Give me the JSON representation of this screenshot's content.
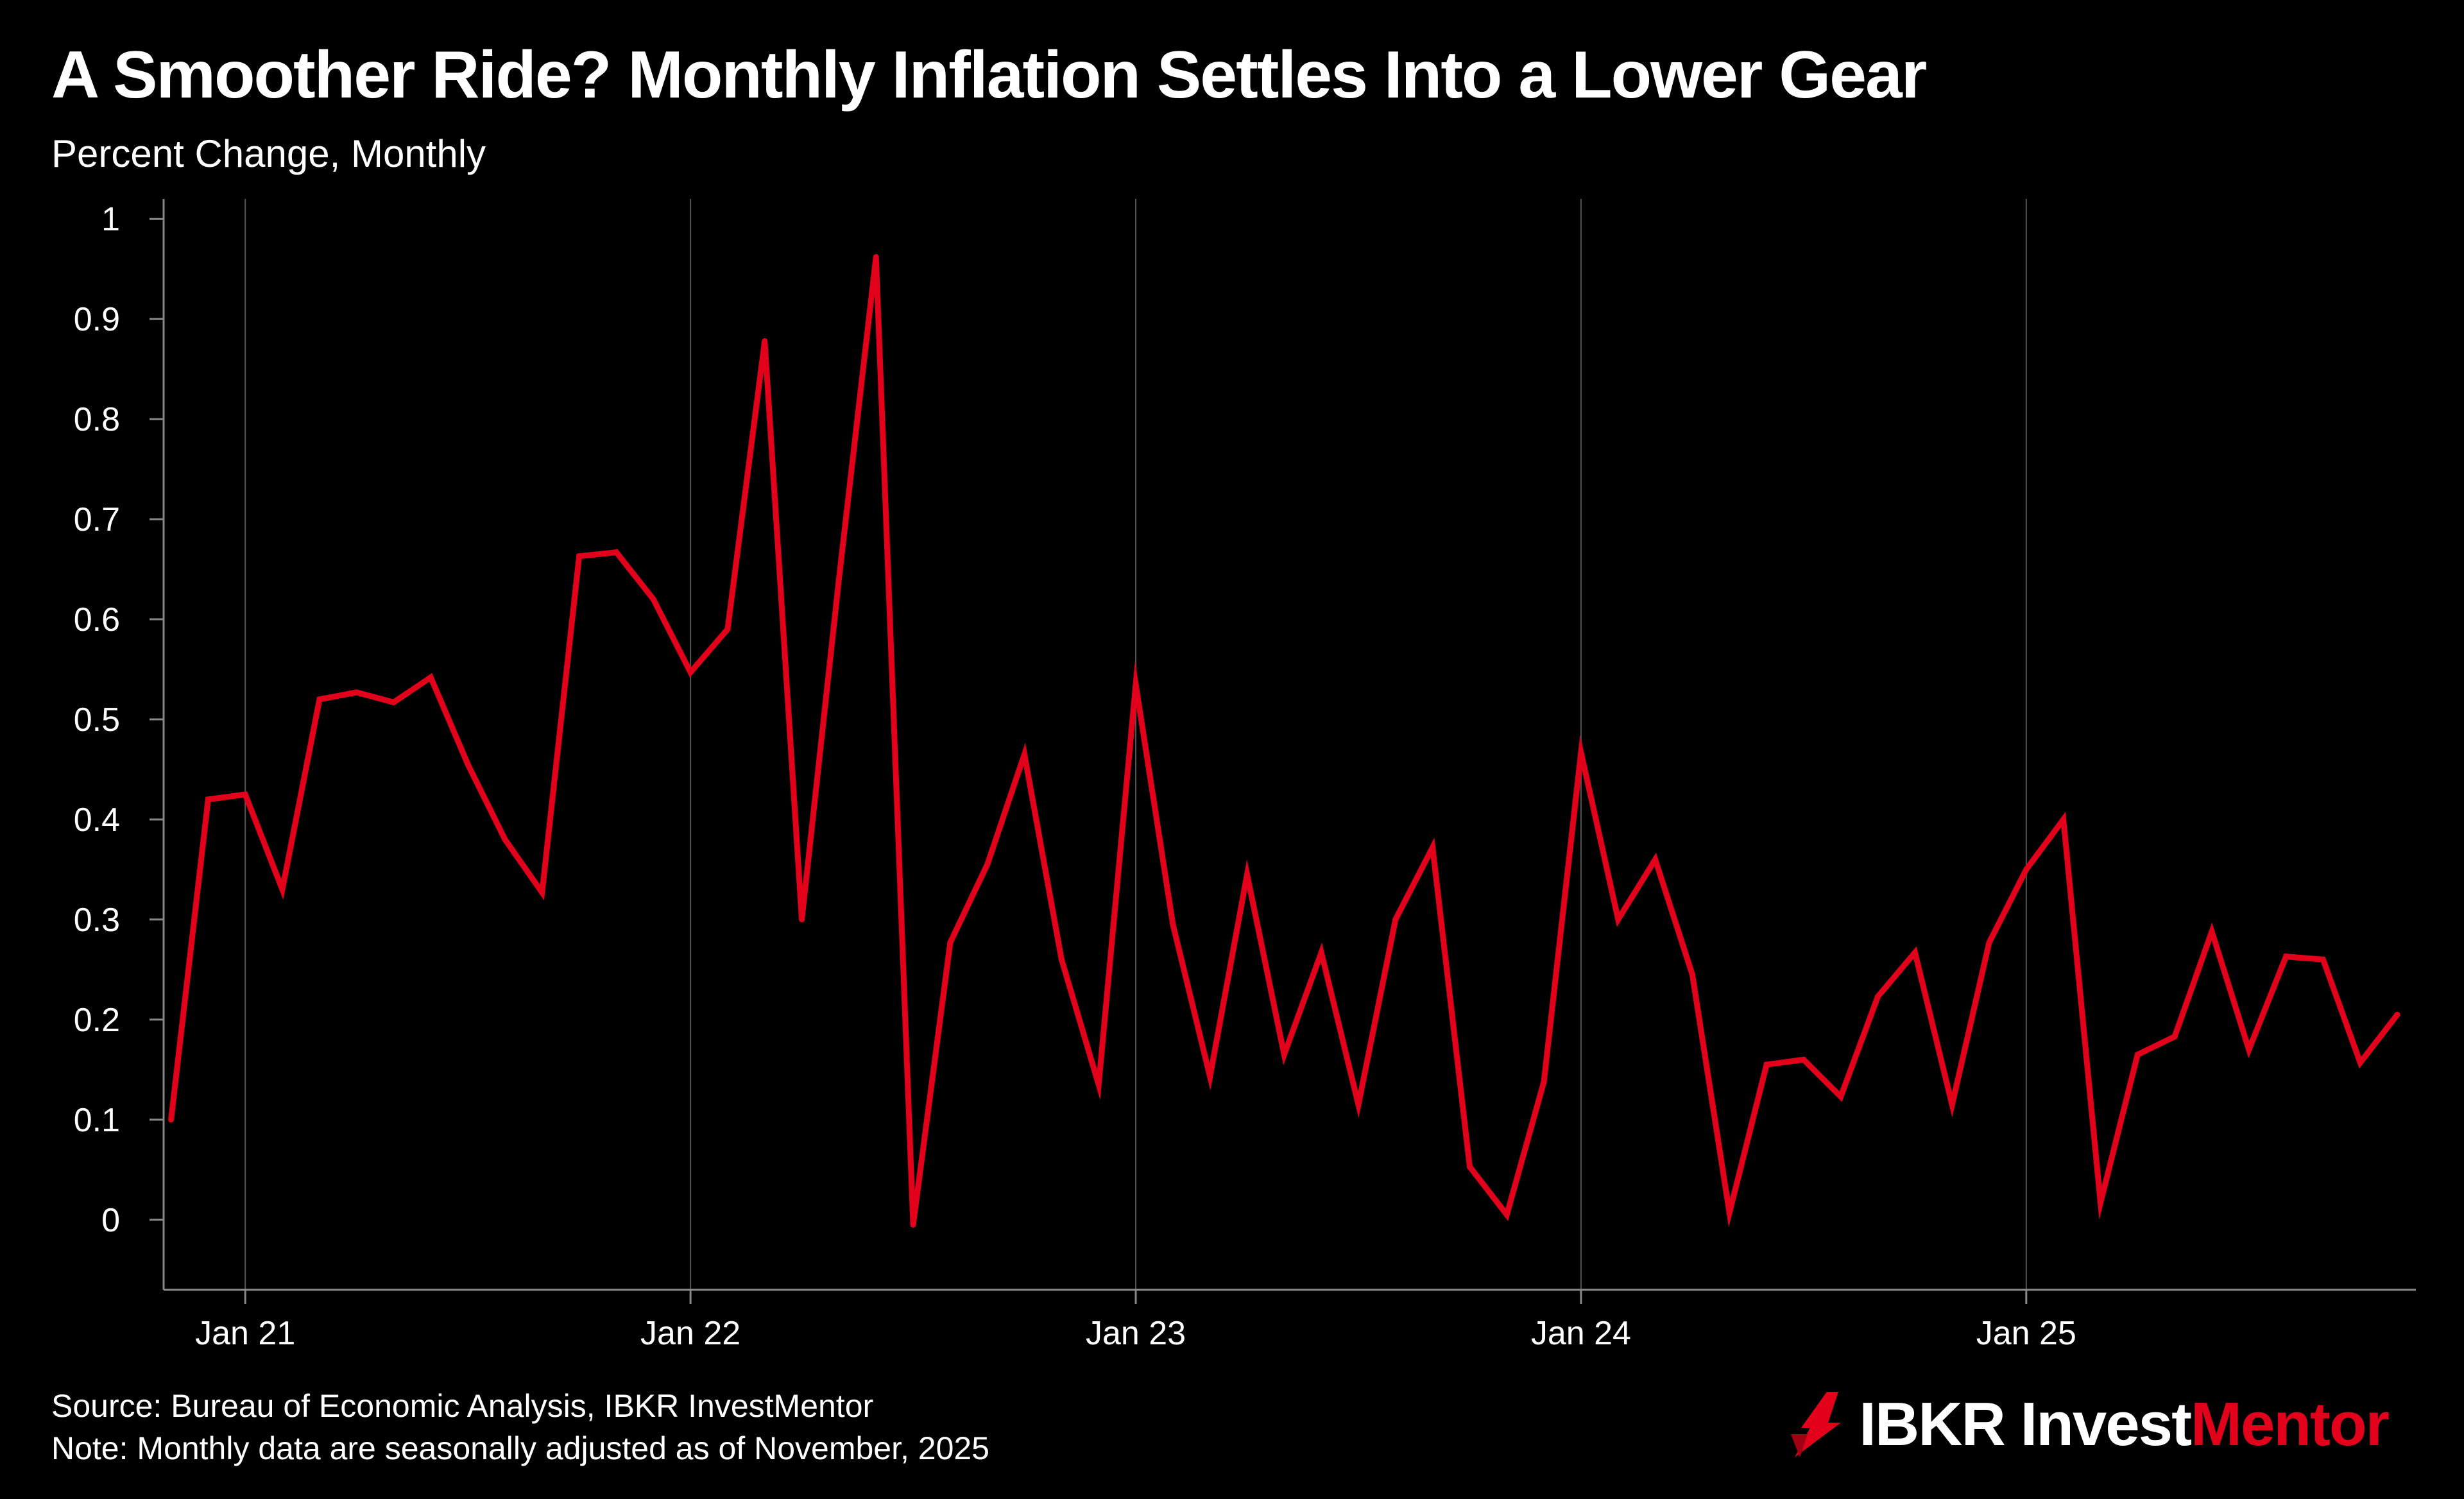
{
  "header": {
    "title": "A Smoother Ride? Monthly Inflation Settles Into a Lower Gear",
    "subtitle": "Percent Change, Monthly"
  },
  "footer": {
    "source": "Source: Bureau of Economic Analysis, IBKR InvestMentor",
    "note": "Note: Monthly data are seasonally adjusted as of November, 2025"
  },
  "logo": {
    "brand": "IBKR Invest",
    "accent": "Mentor",
    "icon": "ibkr-flame-icon"
  },
  "colors": {
    "background": "#000000",
    "line": "#e3001b",
    "text": "#ffffff",
    "grid": "#555555",
    "axis": "#888888"
  },
  "chart_data": {
    "type": "line",
    "title": "A Smoother Ride? Monthly Inflation Settles Into a Lower Gear",
    "ylabel": "Percent Change, Monthly",
    "xlabel": "",
    "ylim": [
      -0.07,
      1.02
    ],
    "xlim": [
      -0.2,
      60.5
    ],
    "yticks": [
      0,
      0.1,
      0.2,
      0.3,
      0.4,
      0.5,
      0.6,
      0.7,
      0.8,
      0.9,
      1
    ],
    "ytick_labels": [
      "0",
      "0.1",
      "0.2",
      "0.3",
      "0.4",
      "0.5",
      "0.6",
      "0.7",
      "0.8",
      "0.9",
      "1"
    ],
    "xticks": [
      {
        "index": 2,
        "label": "Jan 21"
      },
      {
        "index": 14,
        "label": "Jan 22"
      },
      {
        "index": 26,
        "label": "Jan 23"
      },
      {
        "index": 38,
        "label": "Jan 24"
      },
      {
        "index": 50,
        "label": "Jan 25"
      }
    ],
    "vertical_gridlines": true,
    "series": [
      {
        "name": "Monthly inflation",
        "start": "Nov 20",
        "values": [
          0.1,
          0.42,
          0.425,
          0.33,
          0.52,
          0.527,
          0.517,
          0.542,
          0.455,
          0.38,
          0.327,
          0.663,
          0.667,
          0.62,
          0.547,
          0.59,
          0.878,
          0.3,
          0.64,
          0.962,
          -0.005,
          0.277,
          0.355,
          0.465,
          0.26,
          0.135,
          0.535,
          0.295,
          0.143,
          0.345,
          0.165,
          0.267,
          0.115,
          0.3,
          0.372,
          0.053,
          0.005,
          0.138,
          0.467,
          0.3,
          0.36,
          0.245,
          0.007,
          0.155,
          0.16,
          0.123,
          0.223,
          0.267,
          0.115,
          0.277,
          0.35,
          0.4,
          0.017,
          0.165,
          0.183,
          0.288,
          0.17,
          0.263,
          0.26,
          0.157,
          0.205
        ]
      }
    ]
  }
}
